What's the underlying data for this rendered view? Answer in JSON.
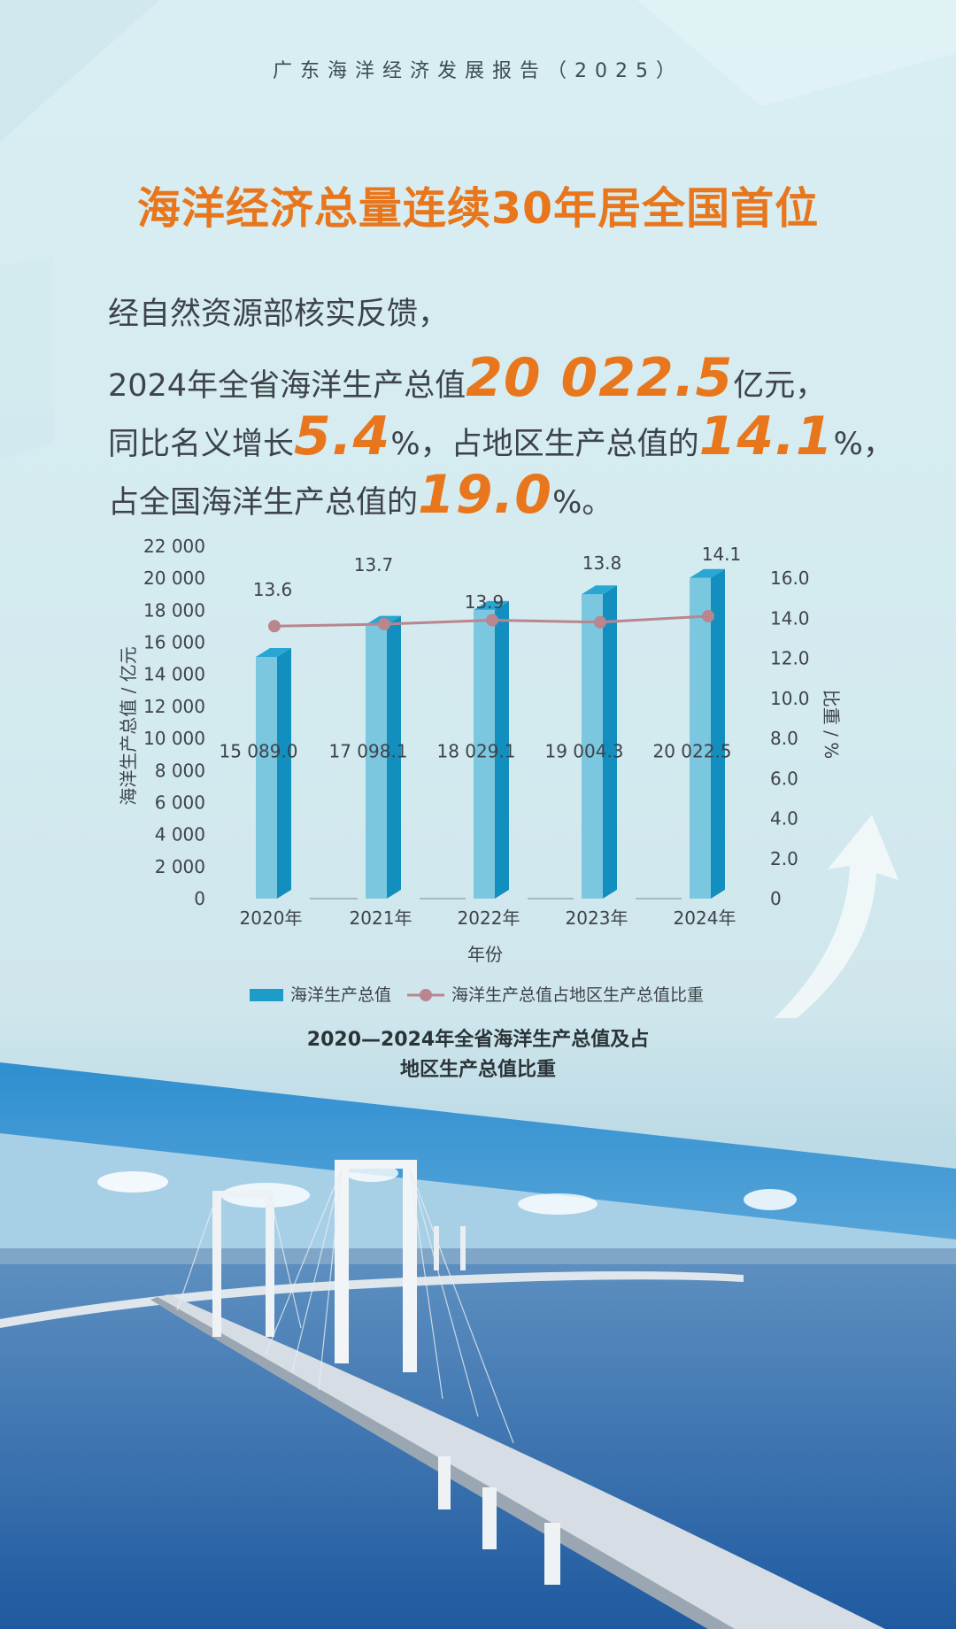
{
  "header": {
    "report_title": "广东海洋经济发展报告（2025）"
  },
  "headline": "海洋经济总量连续30年居全国首位",
  "intro": {
    "line1": "经自然资源部核实反馈，",
    "line2_prefix": "2024年全省海洋生产总值",
    "line2_value": "20 022.5",
    "line2_suffix": "亿元，",
    "line3_prefix": "同比名义增长",
    "line3_value1": "5.4",
    "line3_mid": "%，占地区生产总值的",
    "line3_value2": "14.1",
    "line3_suffix": "%，",
    "line4_prefix": "占全国海洋生产总值的",
    "line4_value": "19.0",
    "line4_suffix": "%。"
  },
  "chart_data": {
    "type": "bar",
    "title": "2020—2024年全省海洋生产总值及占地区生产总值比重",
    "caption_lines": [
      "2020—2024年全省海洋生产总值及占",
      "地区生产总值比重"
    ],
    "categories": [
      "2020年",
      "2021年",
      "2022年",
      "2023年",
      "2024年"
    ],
    "xlabel": "年份",
    "ylabel_left": "海洋生产总值 / 亿元",
    "ylabel_right": "比重 / %",
    "ylim_left": [
      0,
      22000
    ],
    "ylim_right": [
      0,
      16.0
    ],
    "yticks_left": [
      "22 000",
      "20 000",
      "18 000",
      "16 000",
      "14 000",
      "12 000",
      "10 000",
      "8 000",
      "6 000",
      "4 000",
      "2 000",
      "0"
    ],
    "yticks_right": [
      "16.0",
      "14.0",
      "12.0",
      "10.0",
      "8.0",
      "6.0",
      "4.0",
      "2.0",
      "0"
    ],
    "series": [
      {
        "name": "海洋生产总值",
        "type": "bar",
        "axis": "left",
        "values": [
          15089.0,
          17098.1,
          18029.1,
          19004.3,
          20022.5
        ],
        "labels": [
          "15 089.0",
          "17 098.1",
          "18 029.1",
          "19 004.3",
          "20 022.5"
        ],
        "color": "#1e9cc9"
      },
      {
        "name": "海洋生产总值占地区生产总值比重",
        "type": "line",
        "axis": "right",
        "values": [
          13.6,
          13.7,
          13.9,
          13.8,
          14.1
        ],
        "labels": [
          "13.6",
          "13.7",
          "13.9",
          "13.8",
          "14.1"
        ],
        "color": "#b9858f"
      }
    ],
    "legend_position": "bottom",
    "grid": false
  },
  "colors": {
    "accent": "#e8761c",
    "bar_front": "#7cc7e0",
    "bar_side": "#128fbf",
    "bar_top": "#2aa6d3",
    "line": "#b9858f",
    "text": "#3d4348"
  }
}
